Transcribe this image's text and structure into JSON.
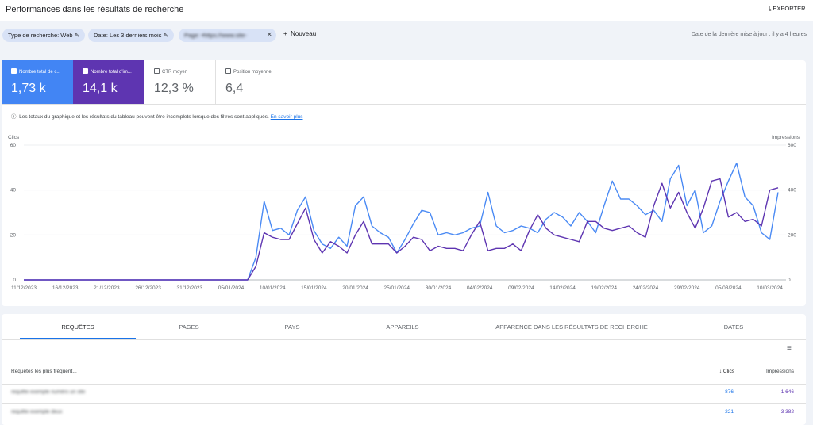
{
  "header": {
    "title": "Performances dans les résultats de recherche",
    "export": "EXPORTER"
  },
  "filters": {
    "chips": [
      "Type de recherche: Web",
      "Date: Les 3 derniers mois",
      "Page: •https://www.site-exemple.com/"
    ],
    "new": "Nouveau",
    "updated": "Date de la dernière mise à jour : il y a 4 heures"
  },
  "metrics": [
    {
      "label": "Nombre total de c...",
      "value": "1,73 k"
    },
    {
      "label": "Nombre total d'im...",
      "value": "14,1 k"
    },
    {
      "label": "CTR moyen",
      "value": "12,3 %"
    },
    {
      "label": "Position moyenne",
      "value": "6,4"
    }
  ],
  "note": {
    "text": "Les totaux du graphique et les résultats du tableau peuvent être incomplets lorsque des filtres sont appliqués.",
    "link": "En savoir plus"
  },
  "chart_data": {
    "type": "line",
    "y_label": "Clics",
    "y2_label": "Impressions",
    "categories": [
      "11/12/2023",
      null,
      null,
      null,
      null,
      "16/12/2023",
      null,
      null,
      null,
      null,
      "21/12/2023",
      null,
      null,
      null,
      null,
      "26/12/2023",
      null,
      null,
      null,
      null,
      "31/12/2023",
      null,
      null,
      null,
      null,
      "05/01/2024",
      null,
      null,
      null,
      null,
      "10/01/2024",
      null,
      null,
      null,
      null,
      "15/01/2024",
      null,
      null,
      null,
      null,
      "20/01/2024",
      null,
      null,
      null,
      null,
      "25/01/2024",
      null,
      null,
      null,
      null,
      "30/01/2024",
      null,
      null,
      null,
      null,
      "04/02/2024",
      null,
      null,
      null,
      null,
      "09/02/2024",
      null,
      null,
      null,
      null,
      "14/02/2024",
      null,
      null,
      null,
      null,
      "19/02/2024",
      null,
      null,
      null,
      null,
      "24/02/2024",
      null,
      null,
      null,
      null,
      "29/02/2024",
      null,
      null,
      null,
      null,
      "05/03/2024",
      null,
      null,
      null,
      null,
      "10/03/2024",
      null
    ],
    "series": [
      {
        "color": "#4a8af4",
        "axis": "y",
        "values": [
          0,
          0,
          0,
          0,
          0,
          0,
          0,
          0,
          0,
          0,
          0,
          0,
          0,
          0,
          0,
          0,
          0,
          0,
          0,
          0,
          0,
          0,
          0,
          0,
          0,
          0,
          0,
          0,
          10,
          35,
          22,
          23,
          20,
          31,
          37,
          22,
          16,
          14,
          19,
          15,
          33,
          37,
          24,
          21,
          19,
          12,
          18,
          25,
          31,
          30,
          20,
          21,
          20,
          21,
          23,
          24,
          39,
          24,
          21,
          22,
          24,
          23,
          21,
          27,
          30,
          28,
          24,
          30,
          26,
          21,
          33,
          44,
          36,
          36,
          33,
          29,
          31,
          26,
          45,
          51,
          33,
          40,
          21,
          24,
          35,
          44,
          52,
          37,
          33,
          21,
          18,
          39
        ]
      },
      {
        "color": "#5e35b1",
        "axis": "y2",
        "values": [
          0,
          0,
          0,
          0,
          0,
          0,
          0,
          0,
          0,
          0,
          0,
          0,
          0,
          0,
          0,
          0,
          0,
          0,
          0,
          0,
          0,
          0,
          0,
          0,
          0,
          0,
          0,
          0,
          60,
          210,
          190,
          180,
          180,
          250,
          320,
          180,
          120,
          170,
          150,
          120,
          200,
          260,
          160,
          160,
          160,
          120,
          150,
          190,
          180,
          130,
          150,
          140,
          140,
          130,
          200,
          260,
          130,
          140,
          140,
          160,
          130,
          220,
          290,
          230,
          200,
          190,
          180,
          170,
          260,
          260,
          230,
          220,
          230,
          240,
          210,
          190,
          330,
          430,
          320,
          390,
          300,
          230,
          320,
          440,
          450,
          280,
          300,
          260,
          270,
          240,
          400,
          410
        ]
      }
    ],
    "ylim": [
      0,
      60
    ],
    "yticks": [
      0,
      20,
      40,
      60
    ],
    "y2lim": [
      0,
      600
    ],
    "y2ticks": [
      0,
      200,
      400,
      600
    ],
    "grid": true
  },
  "tabs": [
    "REQUÊTES",
    "PAGES",
    "PAYS",
    "APPAREILS",
    "APPARENCE DANS LES RÉSULTATS DE RECHERCHE",
    "DATES"
  ],
  "table": {
    "columns": [
      "Requêtes les plus fréquent...",
      "Clics",
      "Impressions"
    ],
    "rows": [
      [
        "requête exemple numéro un site",
        "876",
        "1 646"
      ],
      [
        "requête exemple deux",
        "221",
        "3 382"
      ]
    ]
  }
}
